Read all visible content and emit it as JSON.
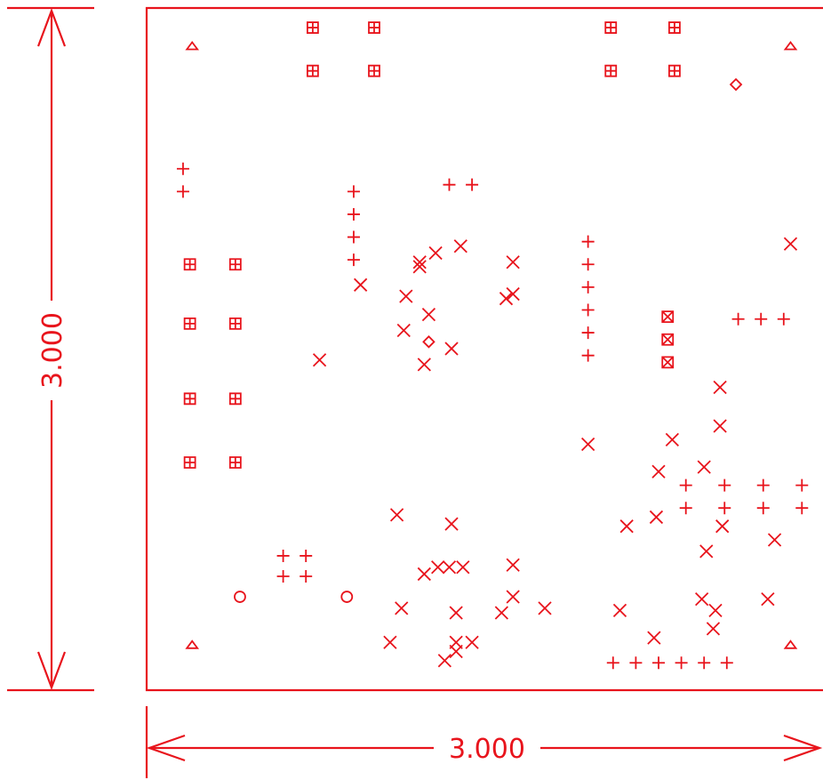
{
  "colors": {
    "stroke": "#e8141c",
    "background": "#ffffff"
  },
  "dimensions": {
    "height_label": "3.000",
    "width_label": "3.000"
  },
  "board": {
    "width": 3.0,
    "height": 3.0,
    "units": "in"
  },
  "symbols": {
    "triangle": [
      [
        0.2,
        2.83
      ],
      [
        2.83,
        2.83
      ],
      [
        0.2,
        0.2
      ],
      [
        2.83,
        0.2
      ]
    ],
    "grid_square": [
      [
        0.73,
        2.91
      ],
      [
        1.0,
        2.91
      ],
      [
        2.04,
        2.91
      ],
      [
        2.32,
        2.91
      ],
      [
        0.73,
        2.72
      ],
      [
        1.0,
        2.72
      ],
      [
        2.04,
        2.72
      ],
      [
        2.32,
        2.72
      ],
      [
        0.19,
        1.87
      ],
      [
        0.39,
        1.87
      ],
      [
        0.19,
        1.61
      ],
      [
        0.39,
        1.61
      ],
      [
        0.19,
        1.28
      ],
      [
        0.39,
        1.28
      ],
      [
        0.19,
        1.0
      ],
      [
        0.39,
        1.0
      ]
    ],
    "x_square": [
      [
        2.29,
        1.64
      ],
      [
        2.29,
        1.54
      ],
      [
        2.29,
        1.44
      ]
    ],
    "diamond": [
      [
        2.59,
        2.66
      ],
      [
        1.24,
        1.53
      ]
    ],
    "circle": [
      [
        0.41,
        0.41
      ],
      [
        0.88,
        0.41
      ]
    ],
    "plus": [
      [
        0.16,
        2.29
      ],
      [
        0.16,
        2.19
      ],
      [
        0.91,
        2.19
      ],
      [
        0.91,
        2.09
      ],
      [
        0.91,
        1.99
      ],
      [
        0.91,
        1.89
      ],
      [
        1.33,
        2.22
      ],
      [
        1.43,
        2.22
      ],
      [
        1.94,
        1.97
      ],
      [
        1.94,
        1.87
      ],
      [
        1.94,
        1.77
      ],
      [
        1.94,
        1.67
      ],
      [
        1.94,
        1.57
      ],
      [
        1.94,
        1.47
      ],
      [
        2.6,
        1.63
      ],
      [
        2.7,
        1.63
      ],
      [
        2.8,
        1.63
      ],
      [
        2.37,
        0.9
      ],
      [
        2.54,
        0.9
      ],
      [
        2.71,
        0.9
      ],
      [
        2.88,
        0.9
      ],
      [
        2.37,
        0.8
      ],
      [
        2.54,
        0.8
      ],
      [
        2.71,
        0.8
      ],
      [
        2.88,
        0.8
      ],
      [
        0.6,
        0.59
      ],
      [
        0.7,
        0.59
      ],
      [
        0.6,
        0.5
      ],
      [
        0.7,
        0.5
      ],
      [
        2.05,
        0.12
      ],
      [
        2.15,
        0.12
      ],
      [
        2.25,
        0.12
      ],
      [
        2.35,
        0.12
      ],
      [
        2.45,
        0.12
      ],
      [
        2.55,
        0.12
      ]
    ],
    "cross": [
      [
        2.83,
        1.96
      ],
      [
        1.38,
        1.95
      ],
      [
        1.27,
        1.92
      ],
      [
        1.2,
        1.88
      ],
      [
        1.2,
        1.86
      ],
      [
        1.61,
        1.88
      ],
      [
        0.94,
        1.78
      ],
      [
        1.14,
        1.73
      ],
      [
        1.61,
        1.74
      ],
      [
        1.58,
        1.72
      ],
      [
        1.24,
        1.65
      ],
      [
        1.13,
        1.58
      ],
      [
        1.34,
        1.5
      ],
      [
        0.76,
        1.45
      ],
      [
        1.22,
        1.43
      ],
      [
        2.52,
        1.33
      ],
      [
        2.52,
        1.16
      ],
      [
        2.31,
        1.1
      ],
      [
        1.94,
        1.08
      ],
      [
        2.45,
        0.98
      ],
      [
        2.25,
        0.96
      ],
      [
        2.24,
        0.76
      ],
      [
        2.11,
        0.72
      ],
      [
        2.53,
        0.72
      ],
      [
        2.76,
        0.66
      ],
      [
        2.46,
        0.61
      ],
      [
        1.1,
        0.77
      ],
      [
        1.34,
        0.73
      ],
      [
        1.28,
        0.54
      ],
      [
        1.33,
        0.54
      ],
      [
        1.39,
        0.54
      ],
      [
        1.61,
        0.55
      ],
      [
        1.22,
        0.51
      ],
      [
        1.61,
        0.41
      ],
      [
        1.12,
        0.36
      ],
      [
        1.36,
        0.34
      ],
      [
        1.56,
        0.34
      ],
      [
        1.75,
        0.36
      ],
      [
        2.08,
        0.35
      ],
      [
        2.44,
        0.4
      ],
      [
        2.5,
        0.35
      ],
      [
        2.73,
        0.4
      ],
      [
        2.49,
        0.27
      ],
      [
        1.07,
        0.21
      ],
      [
        1.36,
        0.21
      ],
      [
        1.43,
        0.21
      ],
      [
        1.36,
        0.17
      ],
      [
        1.31,
        0.13
      ],
      [
        2.23,
        0.23
      ]
    ]
  }
}
